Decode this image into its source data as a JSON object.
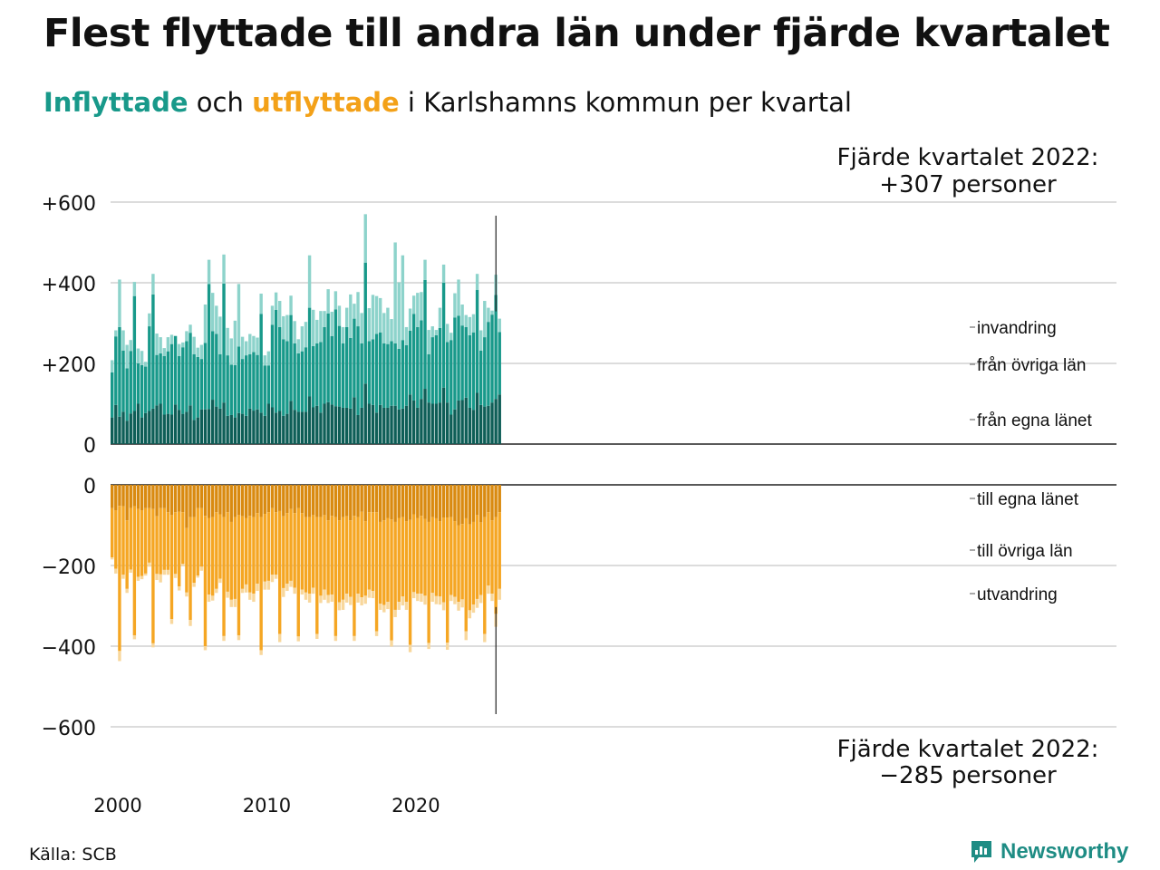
{
  "header": {
    "title": "Flest flyttade till andra län under fjärde kvartalet",
    "subtitle_in": "Inflyttade",
    "subtitle_mid": " och ",
    "subtitle_out": "utflyttade",
    "subtitle_rest": " i Karlshamns kommun per kvartal"
  },
  "footer": {
    "source": "Källa: SCB",
    "brand": "Newsworthy"
  },
  "colors": {
    "in_same_county": "#0e5e57",
    "in_other_counties": "#18998a",
    "in_immigration": "#8dd3cb",
    "out_same_county": "#d98a10",
    "out_other_counties": "#f5a623",
    "out_emigration": "#f8d79c"
  },
  "chart_data": {
    "type": "bar",
    "stacked": true,
    "x_range": [
      2000,
      2023
    ],
    "x_ticks": [
      "2000",
      "2010",
      "2020"
    ],
    "upper_panel": {
      "ylim": [
        0,
        600
      ],
      "yticks": [
        "0",
        "+200",
        "+400",
        "+600"
      ],
      "annotation_line1": "Fjärde kvartalet 2022:",
      "annotation_line2": "+307 personer",
      "legend": [
        "invandring",
        "från övriga län",
        "från egna länet"
      ]
    },
    "lower_panel": {
      "ylim": [
        -600,
        0
      ],
      "yticks": [
        "0",
        "−200",
        "−400",
        "−600"
      ],
      "annotation_line1": "Fjärde kvartalet 2022:",
      "annotation_line2": "−285 personer",
      "legend": [
        "till egna länet",
        "till övriga län",
        "utvandring"
      ]
    },
    "series_in": [
      {
        "name": "från egna länet",
        "values": [
          66,
          97,
          68,
          80,
          58,
          76,
          82,
          100,
          66,
          77,
          82,
          88,
          96,
          100,
          73,
          75,
          73,
          98,
          85,
          75,
          80,
          96,
          60,
          66,
          86,
          86,
          87,
          110,
          93,
          88,
          103,
          70,
          72,
          66,
          77,
          75,
          70,
          88,
          83,
          86,
          78,
          70,
          100,
          91,
          78,
          82,
          70,
          75,
          107,
          85,
          80,
          80,
          80,
          118,
          91,
          95,
          78,
          100,
          104,
          98,
          94,
          93,
          90,
          90,
          88,
          116,
          72,
          90,
          150,
          100,
          97,
          78,
          97,
          90,
          90,
          95,
          95,
          86,
          88,
          95,
          123,
          108,
          90,
          112,
          137,
          103,
          100,
          100,
          103,
          140,
          103,
          73,
          86,
          108,
          109,
          115,
          90,
          85,
          127,
          97,
          93,
          95,
          103,
          112,
          123
        ]
      },
      {
        "name": "från övriga län",
        "values": [
          112,
          170,
          222,
          152,
          130,
          155,
          285,
          100,
          130,
          115,
          210,
          283,
          125,
          125,
          145,
          155,
          175,
          170,
          133,
          165,
          175,
          180,
          163,
          150,
          125,
          165,
          310,
          170,
          180,
          135,
          295,
          150,
          125,
          130,
          165,
          136,
          150,
          135,
          145,
          135,
          245,
          125,
          95,
          205,
          255,
          208,
          190,
          180,
          213,
          165,
          145,
          150,
          160,
          220,
          152,
          155,
          175,
          190,
          220,
          170,
          240,
          200,
          160,
          200,
          175,
          195,
          220,
          160,
          300,
          155,
          163,
          195,
          180,
          160,
          158,
          160,
          155,
          150,
          170,
          150,
          158,
          215,
          200,
          195,
          270,
          120,
          165,
          170,
          185,
          260,
          150,
          185,
          228,
          210,
          185,
          175,
          180,
          192,
          255,
          135,
          172,
          208,
          218,
          258,
          155
        ]
      },
      {
        "name": "invandring",
        "values": [
          30,
          15,
          118,
          50,
          58,
          27,
          35,
          37,
          35,
          12,
          32,
          51,
          53,
          40,
          20,
          35,
          23,
          0,
          30,
          12,
          25,
          20,
          43,
          23,
          35,
          95,
          60,
          95,
          70,
          93,
          72,
          68,
          65,
          110,
          155,
          55,
          35,
          50,
          40,
          43,
          50,
          25,
          35,
          47,
          43,
          65,
          57,
          65,
          48,
          55,
          35,
          62,
          63,
          130,
          90,
          58,
          77,
          40,
          60,
          60,
          45,
          50,
          40,
          48,
          108,
          37,
          85,
          75,
          120,
          82,
          110,
          94,
          85,
          75,
          90,
          55,
          250,
          165,
          210,
          45,
          55,
          45,
          85,
          70,
          50,
          60,
          27,
          13,
          50,
          45,
          45,
          18,
          60,
          90,
          52,
          30,
          45,
          45,
          40,
          50,
          90,
          35,
          10,
          50,
          33
        ]
      }
    ],
    "series_out": [
      {
        "name": "till egna länet",
        "values": [
          -58,
          -63,
          -52,
          -53,
          -88,
          -58,
          -53,
          -60,
          -63,
          -58,
          -58,
          -60,
          -78,
          -58,
          -58,
          -68,
          -75,
          -68,
          -67,
          -68,
          -107,
          -80,
          -80,
          -58,
          -58,
          -77,
          -82,
          -80,
          -68,
          -73,
          -80,
          -68,
          -92,
          -80,
          -75,
          -78,
          -82,
          -77,
          -80,
          -70,
          -80,
          -72,
          -68,
          -58,
          -68,
          -65,
          -78,
          -70,
          -60,
          -70,
          -58,
          -70,
          -80,
          -80,
          -75,
          -80,
          -80,
          -75,
          -88,
          -77,
          -80,
          -88,
          -80,
          -78,
          -88,
          -77,
          -80,
          -67,
          -90,
          -68,
          -68,
          -68,
          -92,
          -88,
          -82,
          -86,
          -92,
          -82,
          -80,
          -90,
          -87,
          -73,
          -82,
          -77,
          -85,
          -92,
          -80,
          -83,
          -90,
          -81,
          -81,
          -80,
          -90,
          -100,
          -97,
          -83,
          -98,
          -92,
          -75,
          -93,
          -80,
          -68,
          -88,
          -80,
          -68
        ]
      },
      {
        "name": "till övriga län",
        "values": [
          -122,
          -145,
          -360,
          -170,
          -170,
          -152,
          -320,
          -168,
          -163,
          -162,
          -135,
          -333,
          -143,
          -164,
          -153,
          -143,
          -258,
          -153,
          -185,
          -128,
          -160,
          -255,
          -163,
          -167,
          -145,
          -323,
          -190,
          -195,
          -190,
          -160,
          -295,
          -197,
          -193,
          -203,
          -298,
          -180,
          -165,
          -190,
          -190,
          -175,
          -330,
          -168,
          -170,
          -165,
          -155,
          -305,
          -178,
          -175,
          -178,
          -185,
          -318,
          -190,
          -187,
          -190,
          -180,
          -290,
          -195,
          -185,
          -185,
          -195,
          -295,
          -203,
          -205,
          -192,
          -190,
          -298,
          -190,
          -212,
          -185,
          -192,
          -195,
          -295,
          -203,
          -210,
          -208,
          -300,
          -218,
          -208,
          -197,
          -200,
          -310,
          -193,
          -188,
          -193,
          -190,
          -300,
          -188,
          -193,
          -187,
          -210,
          -310,
          -193,
          -188,
          -190,
          -187,
          -280,
          -213,
          -205,
          -208,
          -180,
          -290,
          -182,
          -182,
          -240,
          -190
        ]
      },
      {
        "name": "utvandring",
        "values": [
          -5,
          -12,
          -25,
          -10,
          -10,
          -8,
          -10,
          -10,
          -8,
          -5,
          -10,
          -10,
          -15,
          -20,
          -12,
          -12,
          -12,
          -10,
          -10,
          -5,
          -10,
          -15,
          -10,
          -5,
          -10,
          -10,
          -18,
          -12,
          -10,
          -10,
          -12,
          -15,
          -18,
          -20,
          -12,
          -10,
          -20,
          -18,
          -20,
          -18,
          -12,
          -20,
          -22,
          -18,
          -10,
          -20,
          -22,
          -18,
          -15,
          -15,
          -12,
          -12,
          -18,
          -22,
          -15,
          -12,
          -18,
          -25,
          -20,
          -18,
          -12,
          -20,
          -25,
          -22,
          -20,
          -12,
          -22,
          -20,
          -20,
          -20,
          -18,
          -12,
          -15,
          -18,
          -18,
          -15,
          -18,
          -20,
          -22,
          -20,
          -18,
          -15,
          -18,
          -20,
          -22,
          -15,
          -22,
          -20,
          -20,
          -20,
          -18,
          -15,
          -18,
          -22,
          -20,
          -22,
          -20,
          -20,
          -22,
          -20,
          -20,
          -20,
          -18,
          -32,
          -27
        ]
      }
    ]
  }
}
